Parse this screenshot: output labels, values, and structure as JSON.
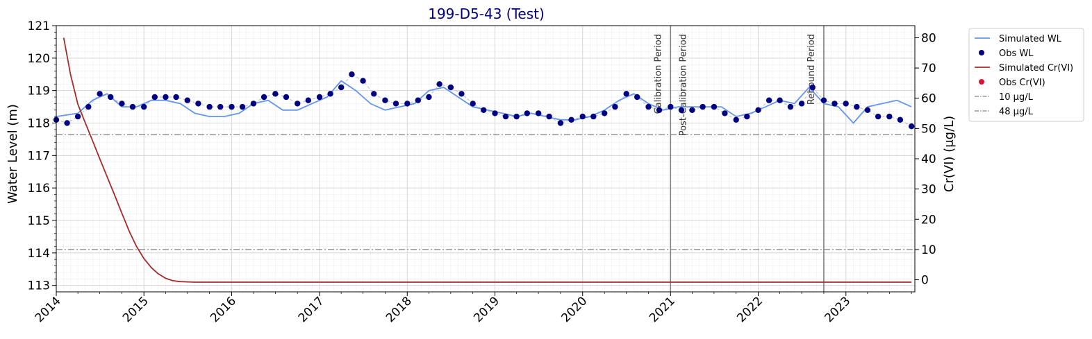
{
  "chart_data": {
    "type": "line",
    "title": "199-D5-43 (Test)",
    "xlabel": "",
    "ylabel_left": "Water Level (m)",
    "ylabel_right": "Cr(VI) (μg/L)",
    "x_range": [
      "2014-01-01",
      "2023-10-15"
    ],
    "ylim_left": [
      112.8,
      121
    ],
    "ylim_right": [
      -4,
      84
    ],
    "x_ticks": [
      "2014",
      "2015",
      "2016",
      "2017",
      "2018",
      "2019",
      "2020",
      "2021",
      "2022",
      "2023"
    ],
    "y_ticks_left": [
      "113",
      "114",
      "115",
      "116",
      "117",
      "118",
      "119",
      "120",
      "121"
    ],
    "y_ticks_right": [
      "0",
      "10",
      "20",
      "30",
      "40",
      "50",
      "60",
      "70",
      "80"
    ],
    "grid": true,
    "legend_position": "outside-right",
    "colors": {
      "sim_wl": "#6495ED",
      "obs_wl": "#000080",
      "sim_cr": "#A52A2A",
      "obs_cr": "#DC143C",
      "threshold": "#808080",
      "period_line": "#808080"
    },
    "legend": [
      {
        "label": "Simulated WL",
        "kind": "line",
        "color": "#6495ED"
      },
      {
        "label": "Obs WL",
        "kind": "marker",
        "color": "#000080"
      },
      {
        "label": "Simulated Cr(VI)",
        "kind": "line",
        "color": "#A52A2A"
      },
      {
        "label": "Obs Cr(VI)",
        "kind": "marker",
        "color": "#DC143C"
      },
      {
        "label": "10 μg/L",
        "kind": "dashdot",
        "color": "#808080"
      },
      {
        "label": "48 μg/L",
        "kind": "dashdot",
        "color": "#808080"
      }
    ],
    "thresholds": [
      {
        "value": 10,
        "label": "10 μg/L"
      },
      {
        "value": 48,
        "label": "48 μg/L"
      }
    ],
    "periods": [
      {
        "date": "2021-01-01",
        "label_before": "Calibration Period",
        "label_after": "Post-Calibration Period"
      },
      {
        "date": "2022-10-01",
        "label_before": "Rebound Period"
      }
    ],
    "series": [
      {
        "name": "Simulated WL",
        "axis": "left",
        "x": [
          "2014-01-01",
          "2014-04-01",
          "2014-06-01",
          "2014-08-01",
          "2014-10-01",
          "2014-12-01",
          "2015-02-01",
          "2015-04-01",
          "2015-06-01",
          "2015-08-01",
          "2015-10-01",
          "2015-12-01",
          "2016-02-01",
          "2016-04-01",
          "2016-06-01",
          "2016-08-01",
          "2016-10-01",
          "2016-12-01",
          "2017-02-01",
          "2017-04-01",
          "2017-06-01",
          "2017-08-01",
          "2017-10-01",
          "2017-12-01",
          "2018-02-01",
          "2018-04-01",
          "2018-06-01",
          "2018-08-01",
          "2018-10-01",
          "2018-12-01",
          "2019-02-01",
          "2019-04-01",
          "2019-06-01",
          "2019-08-01",
          "2019-10-01",
          "2019-12-01",
          "2020-02-01",
          "2020-04-01",
          "2020-06-01",
          "2020-08-01",
          "2020-10-01",
          "2020-12-01",
          "2021-02-01",
          "2021-04-01",
          "2021-06-01",
          "2021-08-01",
          "2021-10-01",
          "2021-12-01",
          "2022-02-01",
          "2022-04-01",
          "2022-06-01",
          "2022-08-01",
          "2022-10-01",
          "2022-12-01",
          "2023-02-01",
          "2023-04-01",
          "2023-06-01",
          "2023-08-01",
          "2023-10-01"
        ],
        "y": [
          118.2,
          118.3,
          118.7,
          118.9,
          118.5,
          118.5,
          118.7,
          118.7,
          118.6,
          118.3,
          118.2,
          118.2,
          118.3,
          118.6,
          118.7,
          118.4,
          118.4,
          118.6,
          118.8,
          119.3,
          119.0,
          118.6,
          118.4,
          118.5,
          118.6,
          119.0,
          119.1,
          118.8,
          118.5,
          118.4,
          118.3,
          118.2,
          118.3,
          118.2,
          118.1,
          118.1,
          118.2,
          118.4,
          118.7,
          118.9,
          118.6,
          118.4,
          118.5,
          118.5,
          118.5,
          118.5,
          118.2,
          118.3,
          118.5,
          118.7,
          118.6,
          119.1,
          118.6,
          118.5,
          118.0,
          118.5,
          118.6,
          118.7,
          118.5
        ]
      },
      {
        "name": "Obs WL",
        "axis": "left",
        "x": [
          "2014-01-01",
          "2014-02-15",
          "2014-04-01",
          "2014-05-15",
          "2014-07-01",
          "2014-08-15",
          "2014-10-01",
          "2014-11-15",
          "2015-01-01",
          "2015-02-15",
          "2015-04-01",
          "2015-05-15",
          "2015-07-01",
          "2015-08-15",
          "2015-10-01",
          "2015-11-15",
          "2016-01-01",
          "2016-02-15",
          "2016-04-01",
          "2016-05-15",
          "2016-07-01",
          "2016-08-15",
          "2016-10-01",
          "2016-11-15",
          "2017-01-01",
          "2017-02-15",
          "2017-04-01",
          "2017-05-15",
          "2017-07-01",
          "2017-08-15",
          "2017-10-01",
          "2017-11-15",
          "2018-01-01",
          "2018-02-15",
          "2018-04-01",
          "2018-05-15",
          "2018-07-01",
          "2018-08-15",
          "2018-10-01",
          "2018-11-15",
          "2019-01-01",
          "2019-02-15",
          "2019-04-01",
          "2019-05-15",
          "2019-07-01",
          "2019-08-15",
          "2019-10-01",
          "2019-11-15",
          "2020-01-01",
          "2020-02-15",
          "2020-04-01",
          "2020-05-15",
          "2020-07-01",
          "2020-08-15",
          "2020-10-01",
          "2020-11-15",
          "2021-01-01",
          "2021-02-15",
          "2021-04-01",
          "2021-05-15",
          "2021-07-01",
          "2021-08-15",
          "2021-10-01",
          "2021-11-15",
          "2022-01-01",
          "2022-02-15",
          "2022-04-01",
          "2022-05-15",
          "2022-07-01",
          "2022-08-15",
          "2022-10-01",
          "2022-11-15",
          "2023-01-01",
          "2023-02-15",
          "2023-04-01",
          "2023-05-15",
          "2023-07-01",
          "2023-08-15",
          "2023-10-01"
        ],
        "y": [
          118.1,
          118.0,
          118.2,
          118.5,
          118.9,
          118.8,
          118.6,
          118.5,
          118.5,
          118.8,
          118.8,
          118.8,
          118.7,
          118.6,
          118.5,
          118.5,
          118.5,
          118.5,
          118.6,
          118.8,
          118.9,
          118.8,
          118.6,
          118.7,
          118.8,
          118.9,
          119.1,
          119.5,
          119.3,
          118.9,
          118.7,
          118.6,
          118.6,
          118.7,
          118.8,
          119.2,
          119.1,
          118.9,
          118.6,
          118.4,
          118.3,
          118.2,
          118.2,
          118.3,
          118.3,
          118.2,
          118.0,
          118.1,
          118.2,
          118.2,
          118.3,
          118.5,
          118.9,
          118.8,
          118.5,
          118.4,
          118.5,
          118.4,
          118.4,
          118.5,
          118.5,
          118.3,
          118.1,
          118.2,
          118.4,
          118.7,
          118.7,
          118.5,
          118.6,
          119.1,
          118.7,
          118.6,
          118.6,
          118.5,
          118.4,
          118.2,
          118.2,
          118.1,
          117.9
        ]
      },
      {
        "name": "Simulated Cr(VI)",
        "axis": "right",
        "x": [
          "2014-02-01",
          "2014-03-01",
          "2014-04-01",
          "2014-05-01",
          "2014-06-01",
          "2014-07-01",
          "2014-08-01",
          "2014-09-01",
          "2014-10-01",
          "2014-11-01",
          "2014-12-01",
          "2015-01-01",
          "2015-02-01",
          "2015-03-01",
          "2015-04-01",
          "2015-05-01",
          "2015-06-01",
          "2015-07-01",
          "2015-08-01",
          "2015-10-01",
          "2016-01-01",
          "2017-01-01",
          "2018-01-01",
          "2019-01-01",
          "2020-01-01",
          "2021-01-01",
          "2022-01-01",
          "2023-01-01",
          "2023-10-01"
        ],
        "y": [
          80,
          68,
          58,
          52,
          46,
          40,
          34,
          28,
          22,
          16,
          11,
          7,
          4,
          2,
          0.5,
          -0.3,
          -0.6,
          -0.7,
          -0.8,
          -0.8,
          -0.8,
          -0.8,
          -0.8,
          -0.8,
          -0.8,
          -0.8,
          -0.8,
          -0.8,
          -0.8
        ]
      }
    ]
  }
}
